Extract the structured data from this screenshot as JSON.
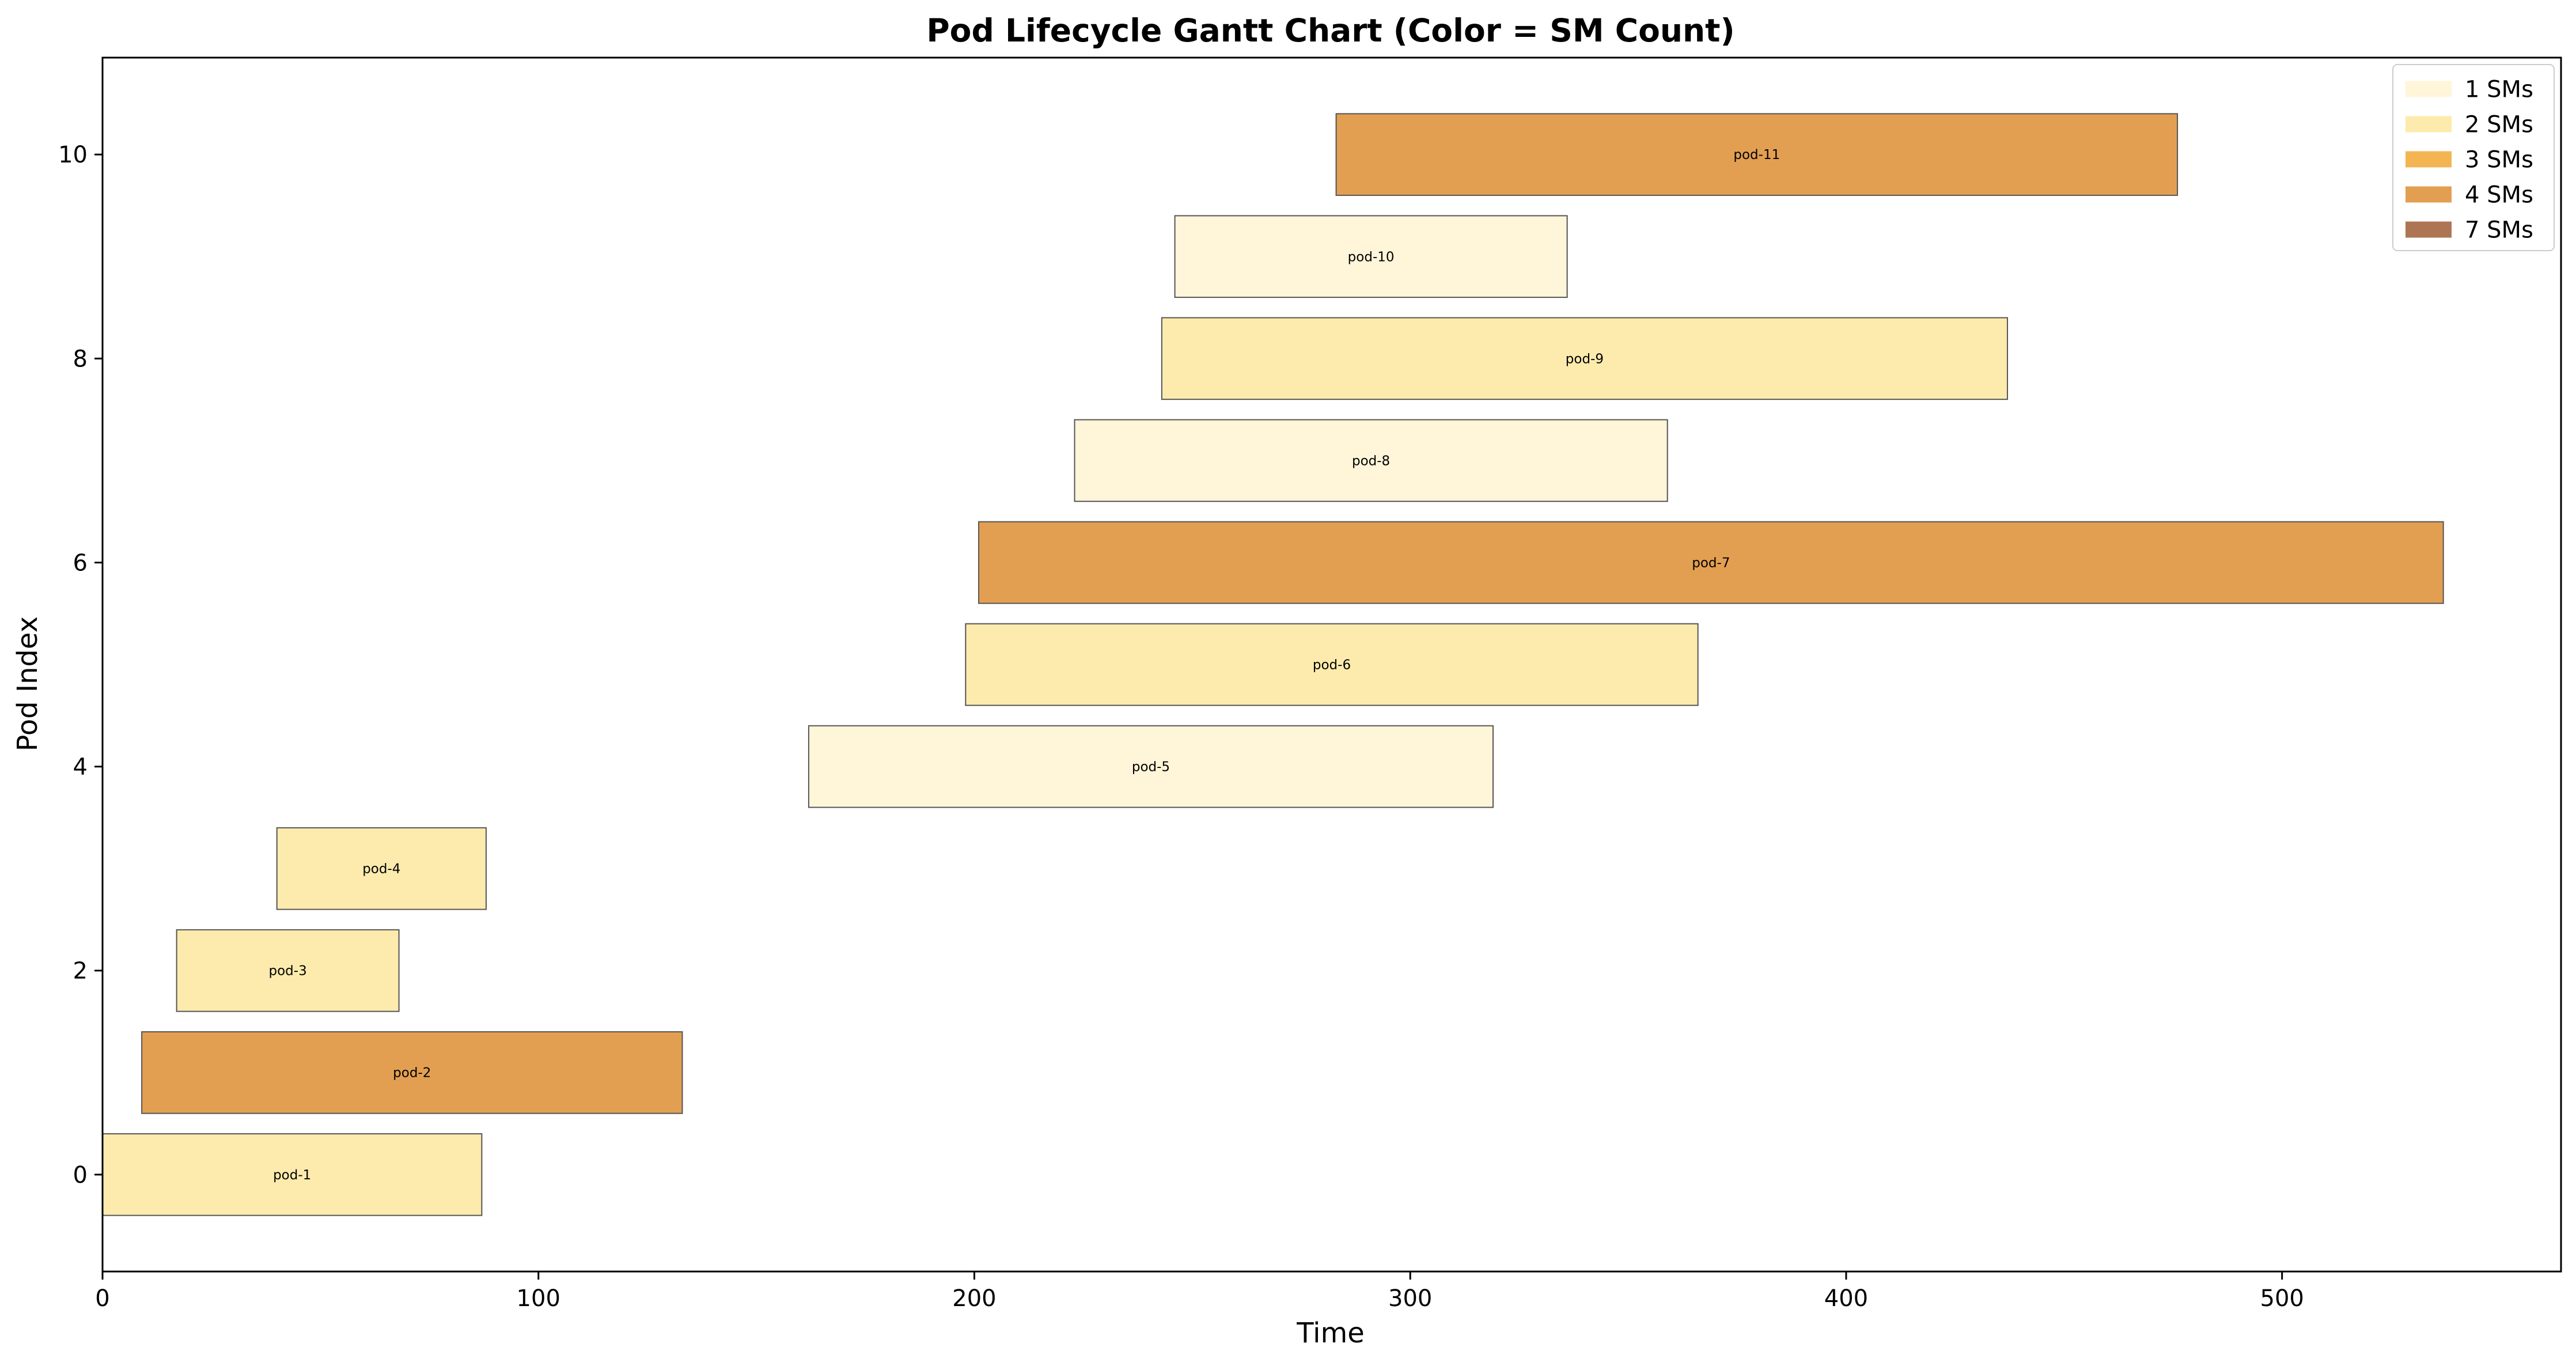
{
  "chart_data": {
    "type": "gantt",
    "title": "Pod Lifecycle Gantt Chart (Color = SM Count)",
    "xlabel": "Time",
    "ylabel": "Pod Index",
    "xlim": [
      0,
      564
    ],
    "ylim": [
      -0.95,
      10.95
    ],
    "x_ticks": [
      0,
      100,
      200,
      300,
      400,
      500
    ],
    "y_ticks": [
      0,
      2,
      4,
      6,
      8,
      10
    ],
    "grid": false,
    "legend_position": "top-right",
    "legend": [
      {
        "label": "1 SMs",
        "sm": 1,
        "color": "#fff5d9"
      },
      {
        "label": "2 SMs",
        "sm": 2,
        "color": "#fdebad"
      },
      {
        "label": "3 SMs",
        "sm": 3,
        "color": "#f3b552"
      },
      {
        "label": "4 SMs",
        "sm": 4,
        "color": "#e39f51"
      },
      {
        "label": "7 SMs",
        "sm": 7,
        "color": "#ae7554"
      }
    ],
    "tasks": [
      {
        "name": "pod-1",
        "index": 0,
        "start": 0,
        "end": 87,
        "sm": 2
      },
      {
        "name": "pod-2",
        "index": 1,
        "start": 9,
        "end": 133,
        "sm": 4
      },
      {
        "name": "pod-3",
        "index": 2,
        "start": 17,
        "end": 68,
        "sm": 2
      },
      {
        "name": "pod-4",
        "index": 3,
        "start": 40,
        "end": 88,
        "sm": 2
      },
      {
        "name": "pod-5",
        "index": 4,
        "start": 162,
        "end": 319,
        "sm": 1
      },
      {
        "name": "pod-6",
        "index": 5,
        "start": 198,
        "end": 366,
        "sm": 2
      },
      {
        "name": "pod-7",
        "index": 6,
        "start": 201,
        "end": 537,
        "sm": 4
      },
      {
        "name": "pod-8",
        "index": 7,
        "start": 223,
        "end": 359,
        "sm": 1
      },
      {
        "name": "pod-9",
        "index": 8,
        "start": 243,
        "end": 437,
        "sm": 2
      },
      {
        "name": "pod-10",
        "index": 9,
        "start": 246,
        "end": 336,
        "sm": 1
      },
      {
        "name": "pod-11",
        "index": 10,
        "start": 283,
        "end": 476,
        "sm": 4
      }
    ]
  }
}
